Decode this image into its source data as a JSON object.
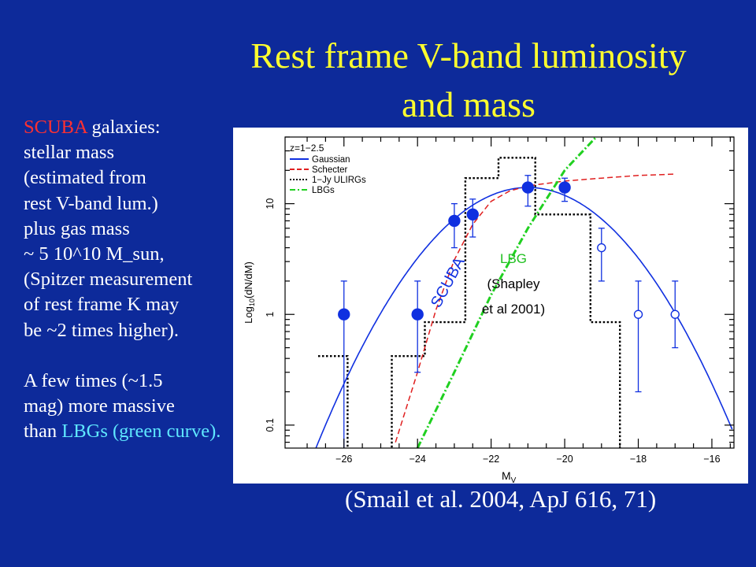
{
  "title": {
    "line1": "Rest frame V-band luminosity",
    "line2": "and mass"
  },
  "sidebar": {
    "p1": [
      "SCUBA",
      " galaxies:",
      "stellar mass",
      "(estimated from",
      "rest V-band lum.)",
      "plus gas mass",
      "~ 5 10^10 M_sun,",
      "(Spitzer measurement",
      "of rest frame K may",
      "be  ~2 times higher)."
    ],
    "p2": [
      "A few times (~1.5",
      "mag) more massive",
      "than ",
      "LBGs (green curve)."
    ]
  },
  "citation": "(Smail et al. 2004, ApJ 616, 71)",
  "colors": {
    "background": "#0d2a9a",
    "title": "#ffff2e",
    "scuba": "#ff3030",
    "lbg_text": "#5fe8ff",
    "gaussian": "#1030e0",
    "schecter": "#e02020",
    "lbg_curve": "#20d020",
    "ulirg": "#000000",
    "points": "#1030e0"
  },
  "chart_data": {
    "type": "scatter",
    "xlabel": "M_V",
    "ylabel": "Log10(dN/dM)",
    "xlim": [
      -27.6,
      -15.4
    ],
    "ylim": [
      0.062,
      40
    ],
    "yscale": "log",
    "xticks": [
      -26,
      -24,
      -22,
      -20,
      -18,
      -16
    ],
    "yticks": [
      0.1,
      1,
      10
    ],
    "grid": false,
    "legend_title": "z=1−2.5",
    "legend_position": "top-left",
    "legend": [
      {
        "label": "Gaussian",
        "color": "#1030e0",
        "style": "solid"
      },
      {
        "label": "Schecter",
        "color": "#e02020",
        "style": "dashed"
      },
      {
        "label": "1−Jy ULIRGs",
        "color": "#000000",
        "style": "dotted"
      },
      {
        "label": "LBGs",
        "color": "#20d020",
        "style": "dashdot"
      }
    ],
    "points_filled": [
      {
        "x": -26,
        "y": 1,
        "lo": 0.05,
        "hi": 2
      },
      {
        "x": -24,
        "y": 1,
        "lo": 0.3,
        "hi": 2
      },
      {
        "x": -23,
        "y": 7,
        "lo": 4,
        "hi": 10
      },
      {
        "x": -22.5,
        "y": 8,
        "lo": 5,
        "hi": 11
      },
      {
        "x": -21,
        "y": 14,
        "lo": 9.5,
        "hi": 18
      },
      {
        "x": -20,
        "y": 14,
        "lo": 10.5,
        "hi": 17
      }
    ],
    "points_open": [
      {
        "x": -19,
        "y": 4,
        "lo": 2,
        "hi": 6
      },
      {
        "x": -18,
        "y": 1,
        "lo": 0.2,
        "hi": 2
      },
      {
        "x": -17,
        "y": 1,
        "lo": 0.5,
        "hi": 2
      }
    ],
    "gaussian": {
      "peak_x": -21.0,
      "peak_y": 14,
      "sigma": 1.75
    },
    "schecter": [
      [
        -24.6,
        0.07
      ],
      [
        -24.0,
        0.3
      ],
      [
        -23.5,
        1.1
      ],
      [
        -23.0,
        3.1
      ],
      [
        -22.5,
        6.5
      ],
      [
        -22.0,
        10.5
      ],
      [
        -21.5,
        13.0
      ],
      [
        -21.0,
        14.5
      ],
      [
        -20.0,
        16.0
      ],
      [
        -19.0,
        17.0
      ],
      [
        -18.0,
        18.0
      ],
      [
        -17.0,
        18.5
      ]
    ],
    "lbg_curve": [
      [
        -24.0,
        0.062
      ],
      [
        -23.0,
        0.3
      ],
      [
        -22.0,
        1.5
      ],
      [
        -21.0,
        6.0
      ],
      [
        -20.0,
        20.0
      ],
      [
        -19.0,
        45.0
      ]
    ],
    "ulirg_steps": [
      {
        "x0": -26.7,
        "x1": -25.9,
        "y": 0.42
      },
      {
        "x0": -25.9,
        "x1": -24.7,
        "y": 0.06
      },
      {
        "x0": -24.7,
        "x1": -23.8,
        "y": 0.42
      },
      {
        "x0": -23.8,
        "x1": -22.7,
        "y": 0.85
      },
      {
        "x0": -22.7,
        "x1": -21.8,
        "y": 17.0
      },
      {
        "x0": -21.8,
        "x1": -20.8,
        "y": 26.0
      },
      {
        "x0": -20.8,
        "x1": -19.3,
        "y": 8.0
      },
      {
        "x0": -19.3,
        "x1": -18.5,
        "y": 0.85
      },
      {
        "x0": -18.5,
        "x1": -17.5,
        "y": 0.06
      }
    ],
    "annotations": {
      "scuba": "SCUBA",
      "lbg1": "LBG",
      "lbg2": "(Shapley",
      "lbg3": "et al 2001)"
    }
  }
}
